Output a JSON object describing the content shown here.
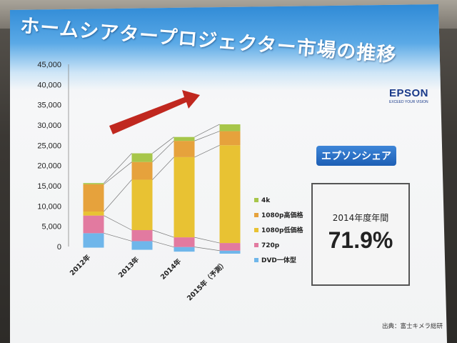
{
  "slide": {
    "title": "ホームシアタープロジェクター市場の推移",
    "logo": {
      "name": "EPSON",
      "tagline": "EXCEED YOUR VISION"
    },
    "share": {
      "label": "エプソンシェア",
      "period": "2014年度年間",
      "value": "71.9%"
    },
    "source": "出典：富士キメラ総研"
  },
  "colors": {
    "title_bar": "#2f8ad6",
    "arrow": "#c0281f",
    "share_label_bg": "#1d5fb5",
    "logo": "#1a3a8a"
  },
  "chart_data": {
    "type": "bar",
    "stacked": true,
    "categories": [
      "2012年",
      "2013年",
      "2014年",
      "2015年（予測）"
    ],
    "y_ticks": [
      "0",
      "5,000",
      "10,000",
      "15,000",
      "20,000",
      "25,000",
      "30,000",
      "35,000",
      "40,000",
      "45,000"
    ],
    "ylim": [
      0,
      45000
    ],
    "grid": false,
    "legend_position": "right",
    "annotation": "red arrow indicating upward trend",
    "series": [
      {
        "name": "DVD一体型",
        "color": "#6fb6ea",
        "values": [
          3600,
          2200,
          1200,
          800
        ]
      },
      {
        "name": "720p",
        "color": "#e27aa0",
        "values": [
          4400,
          2800,
          2500,
          2000
        ]
      },
      {
        "name": "1080p低価格",
        "color": "#e8c233",
        "values": [
          1000,
          12800,
          20700,
          25700
        ]
      },
      {
        "name": "1080p高価格",
        "color": "#e6a23c",
        "values": [
          6800,
          4500,
          4200,
          3700
        ]
      },
      {
        "name": "4k",
        "color": "#a7c64a",
        "values": [
          300,
          2200,
          1000,
          1800
        ]
      }
    ]
  }
}
